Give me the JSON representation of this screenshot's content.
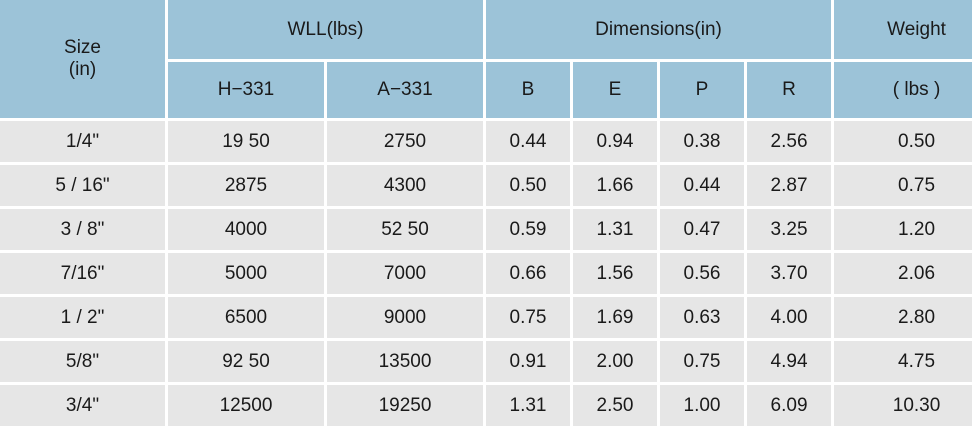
{
  "table": {
    "headers": {
      "size_line1": "Size",
      "size_line2": "(in)",
      "wll": "WLL(lbs)",
      "dimensions": "Dimensions(in)",
      "weight": "Weight",
      "sub": [
        "H−331",
        "A−331",
        "B",
        "E",
        "P",
        "R",
        "( lbs )"
      ]
    },
    "rows": [
      [
        "1/4\"",
        "19 50",
        "2750",
        "0.44",
        "0.94",
        "0.38",
        "2.56",
        "0.50"
      ],
      [
        "5 / 16\"",
        "2875",
        "4300",
        "0.50",
        "1.66",
        "0.44",
        "2.87",
        "0.75"
      ],
      [
        "3 / 8\"",
        "4000",
        "52 50",
        "0.59",
        "1.31",
        "0.47",
        "3.25",
        "1.20"
      ],
      [
        "7/16\"",
        "5000",
        "7000",
        "0.66",
        "1.56",
        "0.56",
        "3.70",
        "2.06"
      ],
      [
        "1 / 2\"",
        "6500",
        "9000",
        "0.75",
        "1.69",
        "0.63",
        "4.00",
        "2.80"
      ],
      [
        "5/8\"",
        "92 50",
        "13500",
        "0.91",
        "2.00",
        "0.75",
        "4.94",
        "4.75"
      ],
      [
        "3/4\"",
        "12500",
        "19250",
        "1.31",
        "2.50",
        "1.00",
        "6.09",
        "10.30"
      ]
    ]
  }
}
